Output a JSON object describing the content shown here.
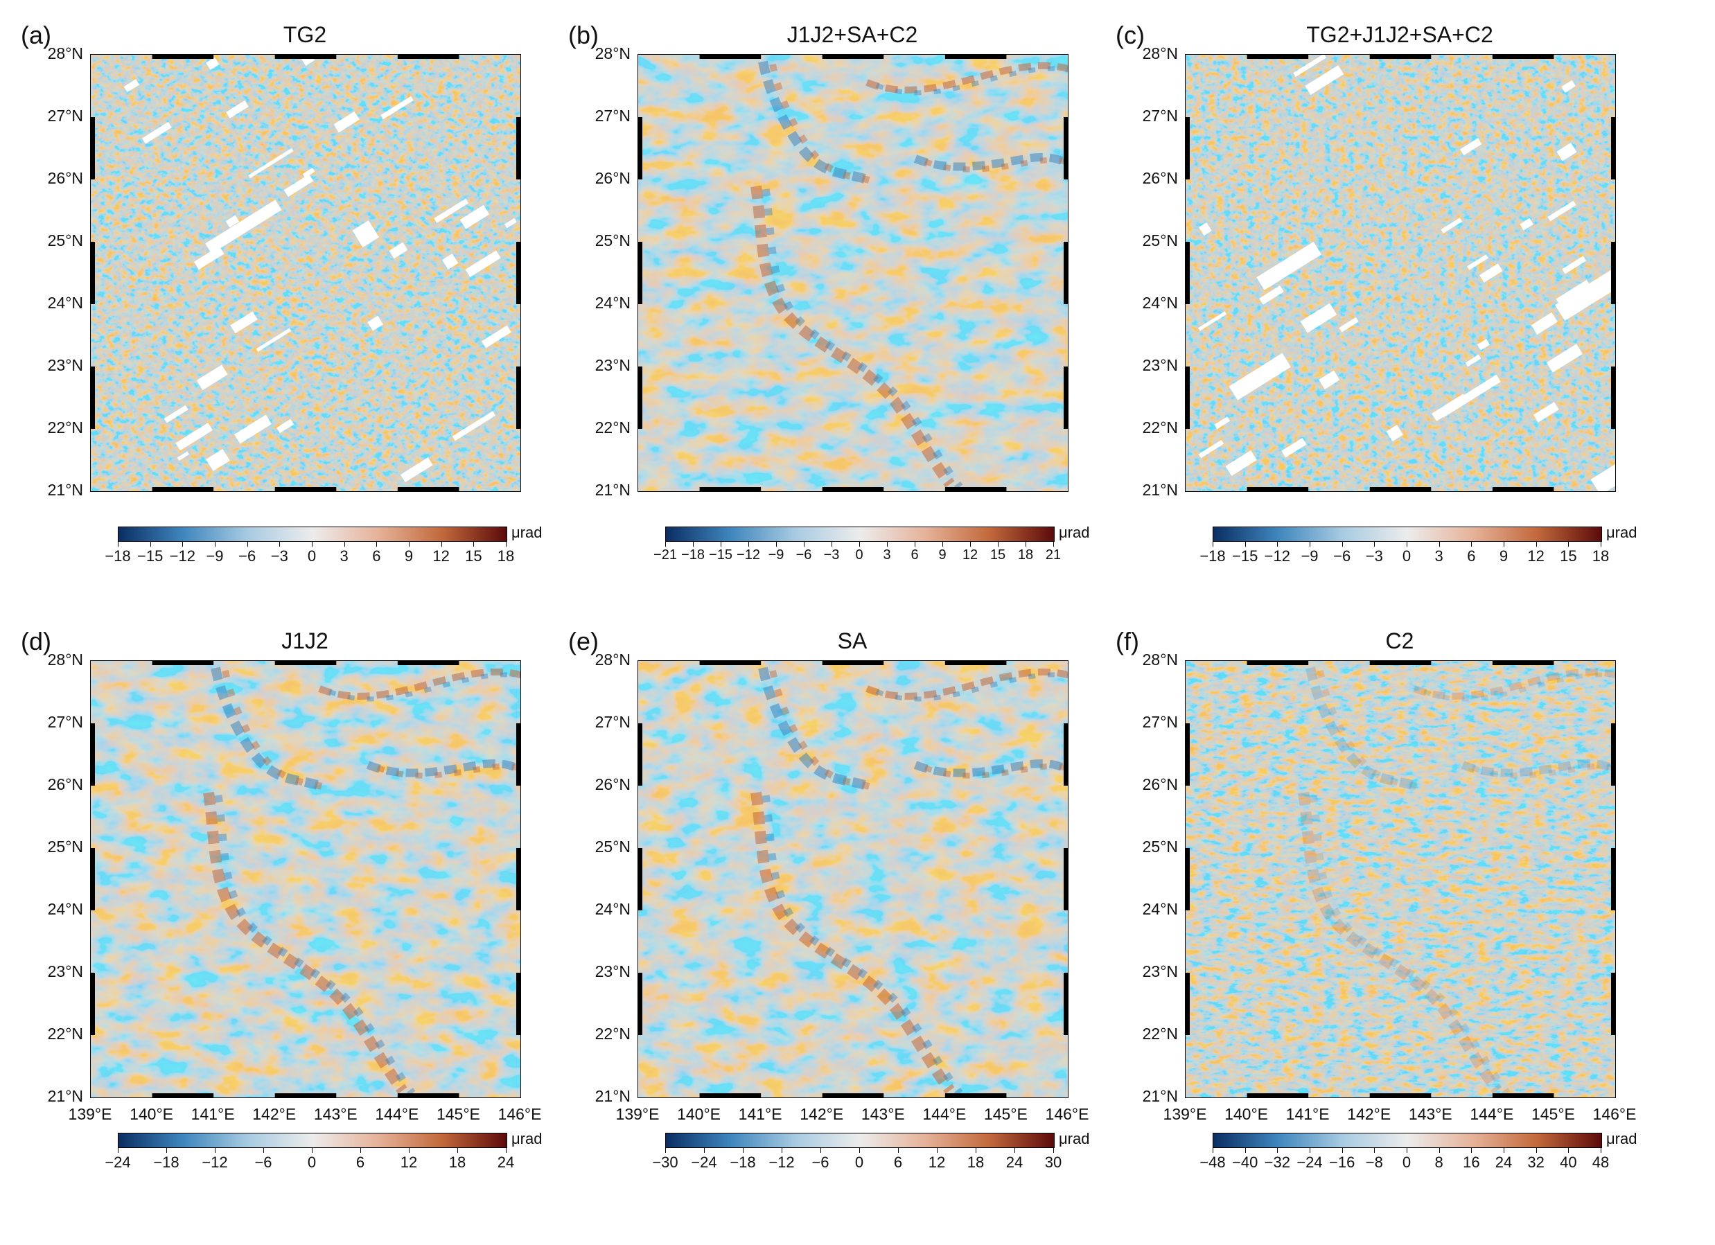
{
  "colors": {
    "neg_dark": "#0a2e63",
    "neg_mid": "#3f86bd",
    "neg_light": "#a8cbe2",
    "center": "#ececec",
    "pos_light": "#e6b39a",
    "pos_mid": "#c2693c",
    "pos_dark": "#5c0a0a",
    "gap": "#ffffff"
  },
  "axes": {
    "lat_labels": [
      "28°N",
      "27°N",
      "26°N",
      "25°N",
      "24°N",
      "23°N",
      "22°N",
      "21°N"
    ],
    "lon_labels": [
      "139°E",
      "140°E",
      "141°E",
      "142°E",
      "143°E",
      "144°E",
      "145°E",
      "146°E"
    ],
    "lat_range": [
      21,
      28
    ],
    "lon_range": [
      139,
      146
    ]
  },
  "panels": [
    {
      "label": "(a)",
      "title": "TG2",
      "unit": "μrad",
      "range": 18,
      "ticks": [
        "−18",
        "−15",
        "−12",
        "−9",
        "−6",
        "−3",
        "0",
        "3",
        "6",
        "9",
        "12",
        "15",
        "18"
      ],
      "style": "noisy",
      "gaps": true,
      "show_lon": false
    },
    {
      "label": "(b)",
      "title": "J1J2+SA+C2",
      "unit": "μrad",
      "range": 21,
      "ticks": [
        "−21",
        "−18",
        "−15",
        "−12",
        "−9",
        "−6",
        "−3",
        "0",
        "3",
        "6",
        "9",
        "12",
        "15",
        "18",
        "21"
      ],
      "style": "smooth",
      "gaps": false,
      "show_lon": false
    },
    {
      "label": "(c)",
      "title": "TG2+J1J2+SA+C2",
      "unit": "μrad",
      "range": 18,
      "ticks": [
        "−18",
        "−15",
        "−12",
        "−9",
        "−6",
        "−3",
        "0",
        "3",
        "6",
        "9",
        "12",
        "15",
        "18"
      ],
      "style": "noisy",
      "gaps": true,
      "show_lon": false
    },
    {
      "label": "(d)",
      "title": "J1J2",
      "unit": "μrad",
      "range": 24,
      "ticks": [
        "−24",
        "−18",
        "−12",
        "−6",
        "0",
        "6",
        "12",
        "18",
        "24"
      ],
      "style": "smooth",
      "gaps": false,
      "show_lon": true
    },
    {
      "label": "(e)",
      "title": "SA",
      "unit": "μrad",
      "range": 30,
      "ticks": [
        "−30",
        "−24",
        "−18",
        "−12",
        "−6",
        "0",
        "6",
        "12",
        "18",
        "24",
        "30"
      ],
      "style": "smooth",
      "gaps": false,
      "show_lon": true
    },
    {
      "label": "(f)",
      "title": "C2",
      "unit": "μrad",
      "range": 48,
      "ticks": [
        "−48",
        "−40",
        "−32",
        "−24",
        "−16",
        "−8",
        "0",
        "8",
        "16",
        "24",
        "32",
        "40",
        "48"
      ],
      "style": "speckle",
      "gaps": false,
      "show_lon": true
    }
  ]
}
